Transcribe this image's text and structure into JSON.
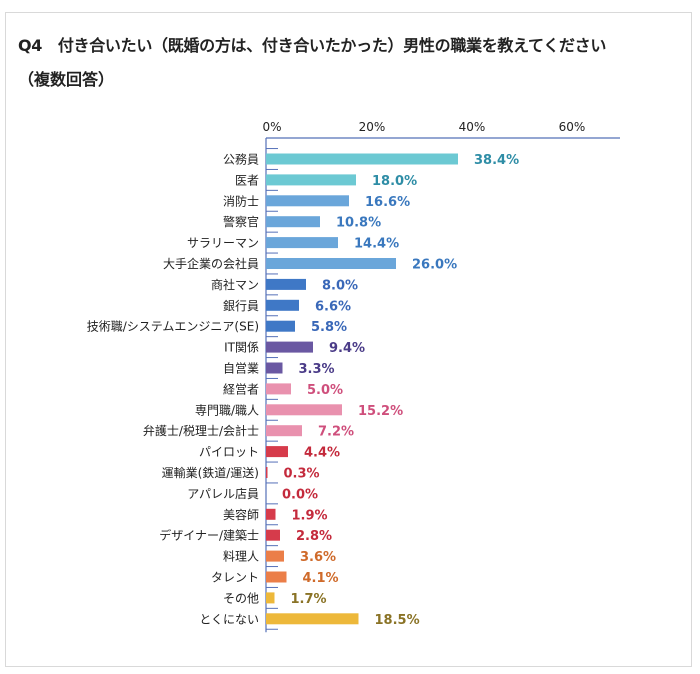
{
  "chart_data": {
    "type": "bar",
    "orientation": "horizontal",
    "title": "Q4　付き合いたい（既婚の方は、付き合いたかった）男性の職業を教えてください",
    "subtitle": "（複数回答）",
    "xlim": [
      0,
      70
    ],
    "ticks": [
      "0%",
      "20%",
      "40%",
      "60%"
    ],
    "tick_values": [
      0,
      20,
      40,
      60
    ],
    "axis_position": "top",
    "grid": false,
    "categories": [
      "公務員",
      "医者",
      "消防士",
      "警察官",
      "サラリーマン",
      "大手企業の会社員",
      "商社マン",
      "銀行員",
      "技術職/システムエンジニア(SE)",
      "IT関係",
      "自営業",
      "経営者",
      "専門職/職人",
      "弁護士/税理士/会計士",
      "パイロット",
      "運輸業(鉄道/運送)",
      "アパレル店員",
      "美容師",
      "デザイナー/建築士",
      "料理人",
      "タレント",
      "その他",
      "とくにない"
    ],
    "values": [
      38.4,
      18.0,
      16.6,
      10.8,
      14.4,
      26.0,
      8.0,
      6.6,
      5.8,
      9.4,
      3.3,
      5.0,
      15.2,
      7.2,
      4.4,
      0.3,
      0.0,
      1.9,
      2.8,
      3.6,
      4.1,
      1.7,
      18.5
    ],
    "labels": [
      "38.4%",
      "18.0%",
      "16.6%",
      "10.8%",
      "14.4%",
      "26.0%",
      "8.0%",
      "6.6%",
      "5.8%",
      "9.4%",
      "3.3%",
      "5.0%",
      "15.2%",
      "7.2%",
      "4.4%",
      "0.3%",
      "0.0%",
      "1.9%",
      "2.8%",
      "3.6%",
      "4.1%",
      "1.7%",
      "18.5%"
    ],
    "groups": [
      "teal",
      "teal",
      "lightblue",
      "lightblue",
      "lightblue",
      "lightblue",
      "blue",
      "blue",
      "blue",
      "purple",
      "purple",
      "pink",
      "pink",
      "pink",
      "red",
      "red",
      "red",
      "red",
      "red",
      "orange",
      "orange",
      "yellow",
      "yellow"
    ],
    "colors": {
      "teal": {
        "bar": "#6CC9D3",
        "label": "#2E8DA6"
      },
      "lightblue": {
        "bar": "#6AA6DA",
        "label": "#3A78BE"
      },
      "blue": {
        "bar": "#3F78C6",
        "label": "#3A68B8"
      },
      "purple": {
        "bar": "#6A58A2",
        "label": "#4B3C88"
      },
      "pink": {
        "bar": "#E991AE",
        "label": "#CF4F7C"
      },
      "red": {
        "bar": "#D63B4B",
        "label": "#C42A3C"
      },
      "orange": {
        "bar": "#EB7E48",
        "label": "#CF6A2A"
      },
      "yellow": {
        "bar": "#EDB83A",
        "label": "#8A7326"
      }
    },
    "axis_color": "#5570B8"
  }
}
